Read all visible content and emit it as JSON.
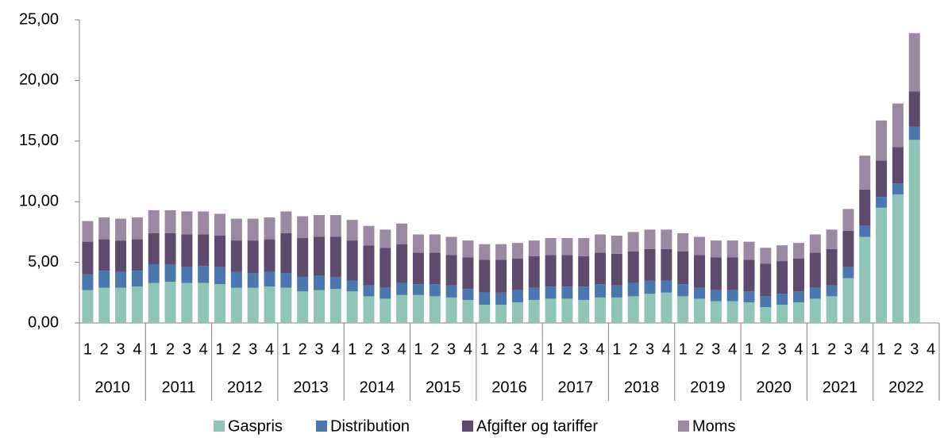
{
  "chart_data": {
    "type": "stacked_bar",
    "category_groups": [
      {
        "label": "2010",
        "categories": [
          "1",
          "2",
          "3",
          "4"
        ]
      },
      {
        "label": "2011",
        "categories": [
          "1",
          "2",
          "3",
          "4"
        ]
      },
      {
        "label": "2012",
        "categories": [
          "1",
          "2",
          "3",
          "4"
        ]
      },
      {
        "label": "2013",
        "categories": [
          "1",
          "2",
          "3",
          "4"
        ]
      },
      {
        "label": "2014",
        "categories": [
          "1",
          "2",
          "3",
          "4"
        ]
      },
      {
        "label": "2015",
        "categories": [
          "1",
          "2",
          "3",
          "4"
        ]
      },
      {
        "label": "2016",
        "categories": [
          "1",
          "2",
          "3",
          "4"
        ]
      },
      {
        "label": "2017",
        "categories": [
          "1",
          "2",
          "3",
          "4"
        ]
      },
      {
        "label": "2018",
        "categories": [
          "1",
          "2",
          "3",
          "4"
        ]
      },
      {
        "label": "2019",
        "categories": [
          "1",
          "2",
          "3",
          "4"
        ]
      },
      {
        "label": "2020",
        "categories": [
          "1",
          "2",
          "3",
          "4"
        ]
      },
      {
        "label": "2021",
        "categories": [
          "1",
          "2",
          "3",
          "4"
        ]
      },
      {
        "label": "2022",
        "categories": [
          "1",
          "2",
          "3",
          "4"
        ]
      }
    ],
    "series": [
      {
        "name": "Gaspris",
        "color": "#8ec5b7",
        "values": [
          2.7,
          2.9,
          2.9,
          3.0,
          3.3,
          3.4,
          3.3,
          3.3,
          3.2,
          2.9,
          2.9,
          3.0,
          2.9,
          2.6,
          2.7,
          2.8,
          2.6,
          2.2,
          2.0,
          2.3,
          2.3,
          2.2,
          2.1,
          1.9,
          1.5,
          1.5,
          1.7,
          1.9,
          2.0,
          2.0,
          1.9,
          2.1,
          2.1,
          2.2,
          2.4,
          2.5,
          2.2,
          2.0,
          1.8,
          1.8,
          1.7,
          1.3,
          1.5,
          1.7,
          2.0,
          2.2,
          3.7,
          7.1,
          9.5,
          10.6,
          15.1,
          null
        ]
      },
      {
        "name": "Distribution",
        "color": "#4a77b0",
        "values": [
          1.3,
          1.4,
          1.3,
          1.3,
          1.5,
          1.4,
          1.3,
          1.4,
          1.4,
          1.3,
          1.2,
          1.2,
          1.2,
          1.2,
          1.2,
          1.0,
          0.9,
          0.9,
          0.9,
          1.0,
          0.9,
          1.0,
          1.0,
          0.9,
          1.0,
          1.0,
          1.0,
          1.0,
          1.0,
          1.0,
          1.1,
          1.1,
          1.0,
          1.1,
          1.1,
          1.0,
          1.0,
          0.9,
          0.9,
          0.9,
          0.9,
          0.9,
          0.9,
          0.9,
          0.9,
          0.9,
          0.9,
          0.9,
          0.9,
          0.9,
          1.1,
          null
        ]
      },
      {
        "name": "Afgifter og tariffer",
        "color": "#5e4a6d",
        "values": [
          2.7,
          2.6,
          2.6,
          2.6,
          2.6,
          2.6,
          2.7,
          2.6,
          2.6,
          2.6,
          2.7,
          2.7,
          3.3,
          3.2,
          3.2,
          3.3,
          3.3,
          3.3,
          3.3,
          3.2,
          2.6,
          2.6,
          2.5,
          2.6,
          2.7,
          2.7,
          2.6,
          2.6,
          2.6,
          2.6,
          2.5,
          2.6,
          2.6,
          2.6,
          2.6,
          2.6,
          2.7,
          2.7,
          2.7,
          2.7,
          2.6,
          2.7,
          2.7,
          2.7,
          2.9,
          3.0,
          3.0,
          3.0,
          3.0,
          3.0,
          2.9,
          null
        ]
      },
      {
        "name": "Moms",
        "color": "#9b88a2",
        "values": [
          1.7,
          1.8,
          1.8,
          1.8,
          1.9,
          1.9,
          1.9,
          1.9,
          1.8,
          1.8,
          1.8,
          1.8,
          1.8,
          1.8,
          1.8,
          1.8,
          1.7,
          1.6,
          1.5,
          1.7,
          1.5,
          1.5,
          1.5,
          1.4,
          1.3,
          1.3,
          1.3,
          1.3,
          1.4,
          1.4,
          1.5,
          1.5,
          1.5,
          1.6,
          1.6,
          1.6,
          1.5,
          1.5,
          1.4,
          1.4,
          1.5,
          1.3,
          1.3,
          1.3,
          1.5,
          1.6,
          1.8,
          2.8,
          3.3,
          3.6,
          4.8,
          null
        ]
      }
    ],
    "ylim": [
      0,
      25
    ],
    "yticks": [
      {
        "value": 0,
        "label": "0,00"
      },
      {
        "value": 5,
        "label": "5,00"
      },
      {
        "value": 10,
        "label": "10,00"
      },
      {
        "value": 15,
        "label": "15,00"
      },
      {
        "value": 20,
        "label": "20,00"
      },
      {
        "value": 25,
        "label": "25,00"
      }
    ],
    "legend": "bottom"
  }
}
